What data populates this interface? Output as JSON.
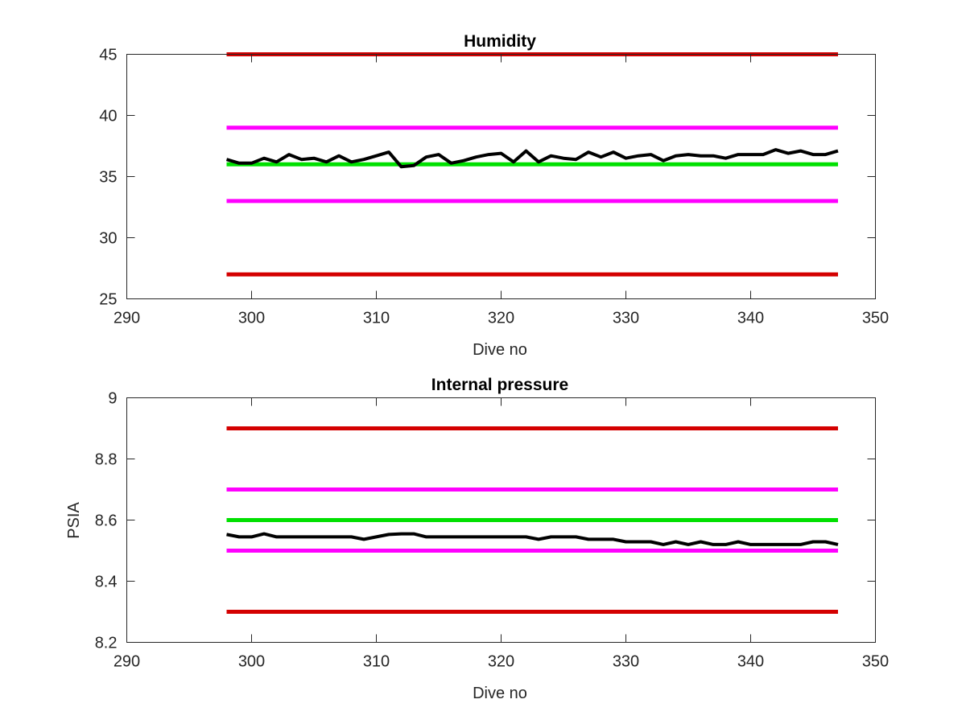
{
  "chart_data": [
    {
      "type": "line",
      "title": "Humidity",
      "xlabel": "Dive no",
      "ylabel": "",
      "xlim": [
        290,
        350
      ],
      "ylim": [
        25,
        45
      ],
      "xticks": [
        "290",
        "300",
        "310",
        "320",
        "330",
        "340",
        "350"
      ],
      "yticks": [
        "25",
        "30",
        "35",
        "40",
        "45"
      ],
      "grid": false,
      "series": [
        {
          "color": "#d40000",
          "style": "limit",
          "x": [
            298,
            347
          ],
          "y": [
            45,
            45
          ]
        },
        {
          "color": "#ff00ff",
          "style": "limit",
          "x": [
            298,
            347
          ],
          "y": [
            39,
            39
          ]
        },
        {
          "color": "#00e000",
          "style": "limit",
          "x": [
            298,
            347
          ],
          "y": [
            36,
            36
          ]
        },
        {
          "color": "#ff00ff",
          "style": "limit",
          "x": [
            298,
            347
          ],
          "y": [
            33,
            33
          ]
        },
        {
          "color": "#d40000",
          "style": "limit",
          "x": [
            298,
            347
          ],
          "y": [
            27,
            27
          ]
        },
        {
          "color": "#000000",
          "style": "measured",
          "x": [
            298,
            299,
            300,
            301,
            302,
            303,
            304,
            305,
            306,
            307,
            308,
            309,
            310,
            311,
            312,
            313,
            314,
            315,
            316,
            317,
            318,
            319,
            320,
            321,
            322,
            323,
            324,
            325,
            326,
            327,
            328,
            329,
            330,
            331,
            332,
            333,
            334,
            335,
            336,
            337,
            338,
            339,
            340,
            341,
            342,
            343,
            344,
            345,
            346,
            347
          ],
          "y": [
            36.4,
            36.1,
            36.1,
            36.5,
            36.2,
            36.8,
            36.4,
            36.5,
            36.2,
            36.7,
            36.2,
            36.4,
            36.7,
            37.0,
            35.8,
            35.9,
            36.6,
            36.8,
            36.1,
            36.3,
            36.6,
            36.8,
            36.9,
            36.2,
            37.1,
            36.2,
            36.7,
            36.5,
            36.4,
            37.0,
            36.6,
            37.0,
            36.5,
            36.7,
            36.8,
            36.3,
            36.7,
            36.8,
            36.7,
            36.7,
            36.5,
            36.8,
            36.8,
            36.8,
            37.2,
            36.9,
            37.1,
            36.8,
            36.8,
            37.1
          ]
        }
      ]
    },
    {
      "type": "line",
      "title": "Internal pressure",
      "xlabel": "Dive no",
      "ylabel": "PSIA",
      "xlim": [
        290,
        350
      ],
      "ylim": [
        8.2,
        9
      ],
      "xticks": [
        "290",
        "300",
        "310",
        "320",
        "330",
        "340",
        "350"
      ],
      "yticks": [
        "8.2",
        "8.4",
        "8.6",
        "8.8",
        "9"
      ],
      "grid": false,
      "series": [
        {
          "color": "#d40000",
          "style": "limit",
          "x": [
            298,
            347
          ],
          "y": [
            8.9,
            8.9
          ]
        },
        {
          "color": "#ff00ff",
          "style": "limit",
          "x": [
            298,
            347
          ],
          "y": [
            8.7,
            8.7
          ]
        },
        {
          "color": "#00e000",
          "style": "limit",
          "x": [
            298,
            347
          ],
          "y": [
            8.6,
            8.6
          ]
        },
        {
          "color": "#ff00ff",
          "style": "limit",
          "x": [
            298,
            347
          ],
          "y": [
            8.5,
            8.5
          ]
        },
        {
          "color": "#d40000",
          "style": "limit",
          "x": [
            298,
            347
          ],
          "y": [
            8.3,
            8.3
          ]
        },
        {
          "color": "#000000",
          "style": "measured",
          "x": [
            298,
            299,
            300,
            301,
            302,
            303,
            304,
            305,
            306,
            307,
            308,
            309,
            310,
            311,
            312,
            313,
            314,
            315,
            316,
            317,
            318,
            319,
            320,
            321,
            322,
            323,
            324,
            325,
            326,
            327,
            328,
            329,
            330,
            331,
            332,
            333,
            334,
            335,
            336,
            337,
            338,
            339,
            340,
            341,
            342,
            343,
            344,
            345,
            346,
            347
          ],
          "y": [
            8.553,
            8.545,
            8.545,
            8.555,
            8.545,
            8.545,
            8.545,
            8.545,
            8.545,
            8.545,
            8.545,
            8.537,
            8.545,
            8.553,
            8.555,
            8.555,
            8.545,
            8.545,
            8.545,
            8.545,
            8.545,
            8.545,
            8.545,
            8.545,
            8.545,
            8.537,
            8.545,
            8.545,
            8.545,
            8.537,
            8.537,
            8.537,
            8.529,
            8.529,
            8.529,
            8.52,
            8.529,
            8.52,
            8.529,
            8.52,
            8.52,
            8.529,
            8.52,
            8.52,
            8.52,
            8.52,
            8.52,
            8.529,
            8.529,
            8.52
          ]
        }
      ]
    }
  ]
}
